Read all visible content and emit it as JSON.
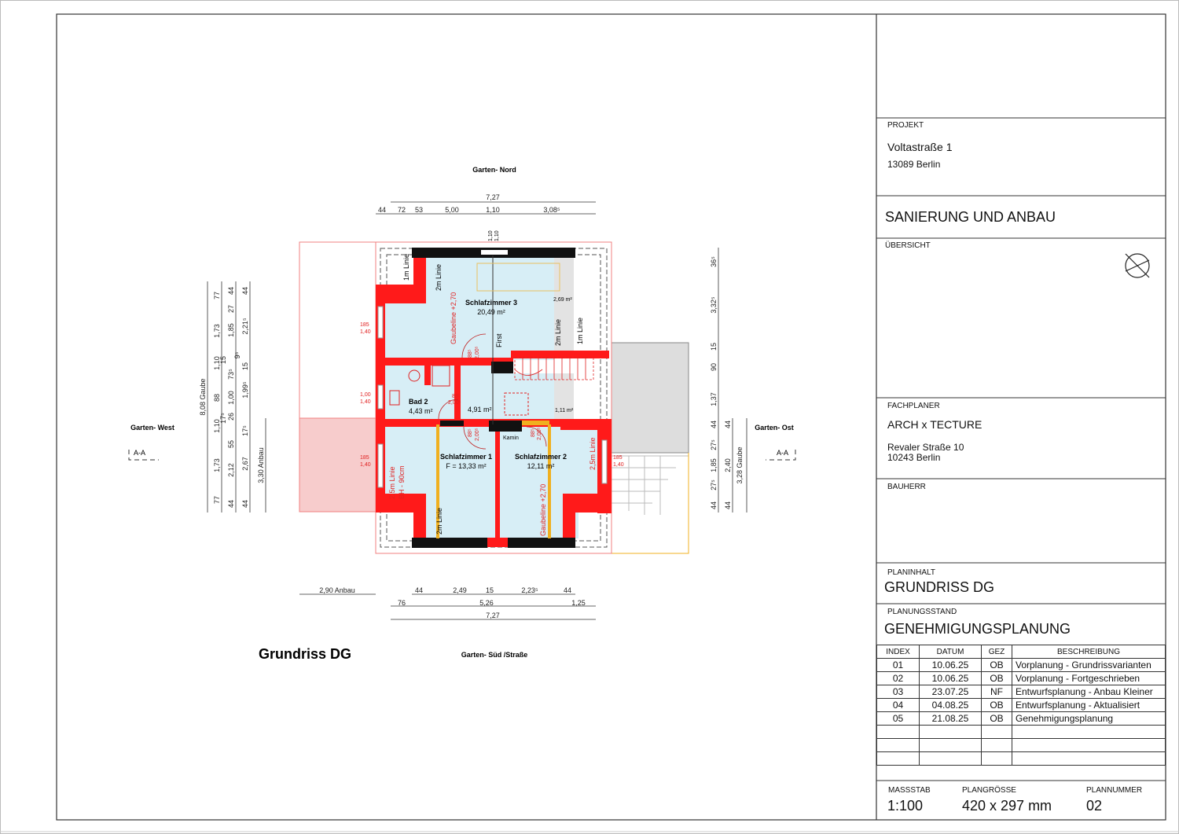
{
  "plan": {
    "title": "Grundriss DG",
    "orientation": {
      "north": "Garten- Nord",
      "south": "Garten- Süd /Straße",
      "west": "Garten- West",
      "east": "Garten- Ost"
    },
    "section_marks": [
      "A-A",
      "A-A"
    ],
    "rooms": [
      {
        "name": "Schlafzimmer 3",
        "area": "20,49 m²"
      },
      {
        "name": "Bad 2",
        "area": "4,43 m²"
      },
      {
        "name": "",
        "area": "4,91 m²"
      },
      {
        "name": "Schlafzimmer 1",
        "area": "F = 13,33 m²"
      },
      {
        "name": "Schlafzimmer 2",
        "area": "12,11 m²"
      }
    ],
    "small_areas": [
      "2,69 m²",
      "1,11 m²"
    ],
    "labels": {
      "kamin": "Kamin",
      "first": "First",
      "line_1m": "1m Linie",
      "line_2m": "2m Linie",
      "line_25m": "2,5m Linie",
      "bh": "BH - 90cm",
      "gaubeline": "Gaubeline +2,70",
      "door_88": "88⁵",
      "door_200": "2,00⁵",
      "win_185": "185",
      "win_140": "1,40",
      "win_100": "1,00",
      "top_110": "1,10"
    },
    "dims_top": [
      "7,27",
      "44",
      "72",
      "53",
      "5,00",
      "1,10",
      "3,08⁵"
    ],
    "dims_bottom": [
      "2,90 Anbau",
      "44",
      "2,49",
      "15",
      "2,23⁵",
      "44",
      "76",
      "5,26",
      "1,25",
      "7,27"
    ],
    "dims_left": {
      "c1": [
        "8,08 Gaube"
      ],
      "c2": [
        "77",
        "1,73",
        "15",
        "1,10",
        "88",
        "17⁵",
        "1,10",
        "1,73",
        "77"
      ],
      "c3": [
        "44",
        "27",
        "1,85",
        "9⁵",
        "73⁵",
        "1,00",
        "26",
        "55",
        "2,12",
        "44"
      ],
      "c4": [
        "44",
        "2,21⁵",
        "15",
        "1,99⁵",
        "17⁵",
        "2,67",
        "44"
      ],
      "c5": [
        "3,30 Anbau"
      ]
    },
    "dims_right": {
      "c1": [
        "36⁵",
        "3,32⁵",
        "15",
        "90",
        "1,37",
        "44",
        "27⁵",
        "1,85",
        "27⁵",
        "44"
      ],
      "c2": [
        "44",
        "2,40",
        "44"
      ],
      "c3": [
        "3,28 Gaube"
      ]
    },
    "colors": {
      "wall": "#ff1a1a",
      "room": "#d7eef6",
      "gable": "#111111",
      "anbau": "#f7cccc",
      "annex": "#dddddd",
      "beam": "#f0b020"
    }
  },
  "titleblock": {
    "projekt_label": "PROJEKT",
    "projekt_street": "Voltastraße 1",
    "projekt_city": "13089 Berlin",
    "project_title": "SANIERUNG UND ANBAU",
    "uebersicht_label": "ÜBERSICHT",
    "north_icon": "north-arrow-circle-icon",
    "fachplaner_label": "FACHPLANER",
    "fachplaner_name": "ARCH x TECTURE",
    "fachplaner_street": "Revaler Straße 10",
    "fachplaner_city": "10243 Berlin",
    "bauherr_label": "BAUHERR",
    "planinhalt_label": "PLANINHALT",
    "planinhalt": "GRUNDRISS DG",
    "planungsstand_label": "PLANUNGSSTAND",
    "planungsstand": "GENEHMIGUNGSPLANUNG",
    "revisions": {
      "headers": [
        "INDEX",
        "DATUM",
        "GEZ",
        "BESCHREIBUNG"
      ],
      "rows": [
        [
          "01",
          "10.06.25",
          "OB",
          "Vorplanung - Grundrissvarianten"
        ],
        [
          "02",
          "10.06.25",
          "OB",
          "Vorplanung - Fortgeschrieben"
        ],
        [
          "03",
          "23.07.25",
          "NF",
          "Entwurfsplanung - Anbau Kleiner"
        ],
        [
          "04",
          "04.08.25",
          "OB",
          "Entwurfsplanung - Aktualisiert"
        ],
        [
          "05",
          "21.08.25",
          "OB",
          "Genehmigungsplanung"
        ]
      ]
    },
    "massstab_label": "MASSSTAB",
    "massstab": "1:100",
    "plangroesse_label": "PLANGRÖSSE",
    "plangroesse": "420 x 297 mm",
    "plannummer_label": "PLANNUMMER",
    "plannummer": "02"
  }
}
